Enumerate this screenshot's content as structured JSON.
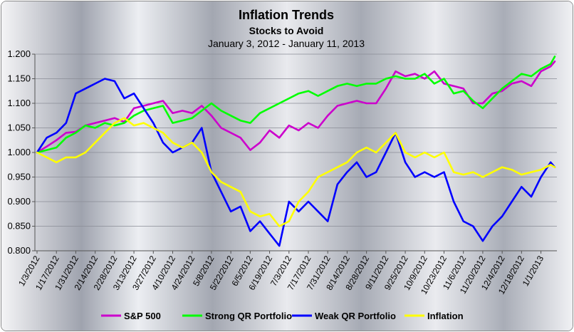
{
  "chart_data": {
    "type": "line",
    "title": "Inflation Trends",
    "subtitle": "Stocks to Avoid",
    "date_range": "January 3, 2012 - January 11, 2013",
    "ylim": [
      0.8,
      1.2
    ],
    "yticks": [
      "0.800",
      "0.850",
      "0.900",
      "0.950",
      "1.000",
      "1.050",
      "1.100",
      "1.150",
      "1.200"
    ],
    "xticks": [
      "1/3/2012",
      "1/17/2012",
      "1/31/2012",
      "2/14/2012",
      "2/28/2012",
      "3/13/2012",
      "3/27/2012",
      "4/10/2012",
      "4/24/2012",
      "5/8/2012",
      "5/22/2012",
      "6/5/2012",
      "6/19/2012",
      "7/3/2012",
      "7/17/2012",
      "7/31/2012",
      "8/14/2012",
      "8/28/2012",
      "9/11/2012",
      "9/25/2012",
      "10/9/2012",
      "10/23/2012",
      "11/6/2012",
      "11/20/2012",
      "12/4/2012",
      "12/18/2012",
      "1/1/2013"
    ],
    "legend_position": "bottom",
    "grid": "horizontal",
    "series": [
      {
        "name": "S&P 500",
        "color": "#cc00cc",
        "points": [
          [
            "1/3/2012",
            1.0
          ],
          [
            "1/10/2012",
            1.012
          ],
          [
            "1/17/2012",
            1.025
          ],
          [
            "1/24/2012",
            1.04
          ],
          [
            "1/31/2012",
            1.042
          ],
          [
            "2/7/2012",
            1.055
          ],
          [
            "2/14/2012",
            1.06
          ],
          [
            "2/21/2012",
            1.065
          ],
          [
            "2/28/2012",
            1.07
          ],
          [
            "3/6/2012",
            1.062
          ],
          [
            "3/13/2012",
            1.09
          ],
          [
            "3/20/2012",
            1.095
          ],
          [
            "3/27/2012",
            1.1
          ],
          [
            "4/3/2012",
            1.105
          ],
          [
            "4/10/2012",
            1.08
          ],
          [
            "4/17/2012",
            1.085
          ],
          [
            "4/24/2012",
            1.08
          ],
          [
            "5/1/2012",
            1.095
          ],
          [
            "5/8/2012",
            1.075
          ],
          [
            "5/15/2012",
            1.05
          ],
          [
            "5/22/2012",
            1.04
          ],
          [
            "5/29/2012",
            1.03
          ],
          [
            "6/5/2012",
            1.005
          ],
          [
            "6/12/2012",
            1.02
          ],
          [
            "6/19/2012",
            1.045
          ],
          [
            "6/26/2012",
            1.03
          ],
          [
            "7/3/2012",
            1.055
          ],
          [
            "7/10/2012",
            1.045
          ],
          [
            "7/17/2012",
            1.06
          ],
          [
            "7/24/2012",
            1.05
          ],
          [
            "7/31/2012",
            1.075
          ],
          [
            "8/7/2012",
            1.095
          ],
          [
            "8/14/2012",
            1.1
          ],
          [
            "8/21/2012",
            1.105
          ],
          [
            "8/28/2012",
            1.1
          ],
          [
            "9/4/2012",
            1.1
          ],
          [
            "9/11/2012",
            1.13
          ],
          [
            "9/18/2012",
            1.165
          ],
          [
            "9/25/2012",
            1.155
          ],
          [
            "10/2/2012",
            1.16
          ],
          [
            "10/9/2012",
            1.15
          ],
          [
            "10/16/2012",
            1.165
          ],
          [
            "10/23/2012",
            1.14
          ],
          [
            "10/30/2012",
            1.135
          ],
          [
            "11/6/2012",
            1.13
          ],
          [
            "11/13/2012",
            1.1
          ],
          [
            "11/20/2012",
            1.1
          ],
          [
            "11/27/2012",
            1.12
          ],
          [
            "12/4/2012",
            1.125
          ],
          [
            "12/11/2012",
            1.14
          ],
          [
            "12/18/2012",
            1.145
          ],
          [
            "12/25/2012",
            1.135
          ],
          [
            "1/1/2013",
            1.165
          ],
          [
            "1/8/2013",
            1.175
          ],
          [
            "1/11/2013",
            1.185
          ]
        ]
      },
      {
        "name": "Strong QR Portfolio",
        "color": "#00ff00",
        "points": [
          [
            "1/3/2012",
            1.0
          ],
          [
            "1/10/2012",
            1.005
          ],
          [
            "1/17/2012",
            1.01
          ],
          [
            "1/24/2012",
            1.03
          ],
          [
            "1/31/2012",
            1.04
          ],
          [
            "2/7/2012",
            1.055
          ],
          [
            "2/14/2012",
            1.05
          ],
          [
            "2/21/2012",
            1.06
          ],
          [
            "2/28/2012",
            1.055
          ],
          [
            "3/6/2012",
            1.06
          ],
          [
            "3/13/2012",
            1.075
          ],
          [
            "3/20/2012",
            1.085
          ],
          [
            "3/27/2012",
            1.09
          ],
          [
            "4/3/2012",
            1.095
          ],
          [
            "4/10/2012",
            1.06
          ],
          [
            "4/17/2012",
            1.065
          ],
          [
            "4/24/2012",
            1.07
          ],
          [
            "5/1/2012",
            1.085
          ],
          [
            "5/8/2012",
            1.1
          ],
          [
            "5/15/2012",
            1.085
          ],
          [
            "5/22/2012",
            1.075
          ],
          [
            "5/29/2012",
            1.065
          ],
          [
            "6/5/2012",
            1.06
          ],
          [
            "6/12/2012",
            1.08
          ],
          [
            "6/19/2012",
            1.09
          ],
          [
            "6/26/2012",
            1.1
          ],
          [
            "7/3/2012",
            1.11
          ],
          [
            "7/10/2012",
            1.12
          ],
          [
            "7/17/2012",
            1.125
          ],
          [
            "7/24/2012",
            1.115
          ],
          [
            "7/31/2012",
            1.125
          ],
          [
            "8/7/2012",
            1.135
          ],
          [
            "8/14/2012",
            1.14
          ],
          [
            "8/21/2012",
            1.135
          ],
          [
            "8/28/2012",
            1.14
          ],
          [
            "9/4/2012",
            1.14
          ],
          [
            "9/11/2012",
            1.15
          ],
          [
            "9/18/2012",
            1.155
          ],
          [
            "9/25/2012",
            1.15
          ],
          [
            "10/2/2012",
            1.15
          ],
          [
            "10/9/2012",
            1.16
          ],
          [
            "10/16/2012",
            1.14
          ],
          [
            "10/23/2012",
            1.15
          ],
          [
            "10/30/2012",
            1.12
          ],
          [
            "11/6/2012",
            1.125
          ],
          [
            "11/13/2012",
            1.105
          ],
          [
            "11/20/2012",
            1.09
          ],
          [
            "11/27/2012",
            1.11
          ],
          [
            "12/4/2012",
            1.13
          ],
          [
            "12/11/2012",
            1.145
          ],
          [
            "12/18/2012",
            1.16
          ],
          [
            "12/25/2012",
            1.155
          ],
          [
            "1/1/2013",
            1.17
          ],
          [
            "1/8/2013",
            1.18
          ],
          [
            "1/11/2013",
            1.195
          ]
        ]
      },
      {
        "name": "Weak QR Portfolio",
        "color": "#0000ff",
        "points": [
          [
            "1/3/2012",
            1.0
          ],
          [
            "1/10/2012",
            1.03
          ],
          [
            "1/17/2012",
            1.04
          ],
          [
            "1/24/2012",
            1.06
          ],
          [
            "1/31/2012",
            1.12
          ],
          [
            "2/7/2012",
            1.13
          ],
          [
            "2/14/2012",
            1.14
          ],
          [
            "2/21/2012",
            1.15
          ],
          [
            "2/28/2012",
            1.145
          ],
          [
            "3/6/2012",
            1.11
          ],
          [
            "3/13/2012",
            1.12
          ],
          [
            "3/20/2012",
            1.09
          ],
          [
            "3/27/2012",
            1.06
          ],
          [
            "4/3/2012",
            1.02
          ],
          [
            "4/10/2012",
            1.0
          ],
          [
            "4/17/2012",
            1.01
          ],
          [
            "4/24/2012",
            1.02
          ],
          [
            "5/1/2012",
            1.05
          ],
          [
            "5/8/2012",
            0.96
          ],
          [
            "5/15/2012",
            0.92
          ],
          [
            "5/22/2012",
            0.88
          ],
          [
            "5/29/2012",
            0.89
          ],
          [
            "6/5/2012",
            0.84
          ],
          [
            "6/12/2012",
            0.86
          ],
          [
            "6/19/2012",
            0.835
          ],
          [
            "6/26/2012",
            0.81
          ],
          [
            "7/3/2012",
            0.9
          ],
          [
            "7/10/2012",
            0.88
          ],
          [
            "7/17/2012",
            0.9
          ],
          [
            "7/24/2012",
            0.88
          ],
          [
            "7/31/2012",
            0.86
          ],
          [
            "8/7/2012",
            0.935
          ],
          [
            "8/14/2012",
            0.96
          ],
          [
            "8/21/2012",
            0.98
          ],
          [
            "8/28/2012",
            0.95
          ],
          [
            "9/4/2012",
            0.96
          ],
          [
            "9/11/2012",
            1.0
          ],
          [
            "9/18/2012",
            1.04
          ],
          [
            "9/25/2012",
            0.98
          ],
          [
            "10/2/2012",
            0.95
          ],
          [
            "10/9/2012",
            0.96
          ],
          [
            "10/16/2012",
            0.95
          ],
          [
            "10/23/2012",
            0.96
          ],
          [
            "10/30/2012",
            0.9
          ],
          [
            "11/6/2012",
            0.86
          ],
          [
            "11/13/2012",
            0.85
          ],
          [
            "11/20/2012",
            0.82
          ],
          [
            "11/27/2012",
            0.85
          ],
          [
            "12/4/2012",
            0.87
          ],
          [
            "12/11/2012",
            0.9
          ],
          [
            "12/18/2012",
            0.93
          ],
          [
            "12/25/2012",
            0.91
          ],
          [
            "1/1/2013",
            0.95
          ],
          [
            "1/8/2013",
            0.98
          ],
          [
            "1/11/2013",
            0.97
          ]
        ]
      },
      {
        "name": "Inflation",
        "color": "#ffff00",
        "points": [
          [
            "1/3/2012",
            1.0
          ],
          [
            "1/10/2012",
            0.99
          ],
          [
            "1/17/2012",
            0.98
          ],
          [
            "1/24/2012",
            0.99
          ],
          [
            "1/31/2012",
            0.99
          ],
          [
            "2/7/2012",
            1.0
          ],
          [
            "2/14/2012",
            1.02
          ],
          [
            "2/21/2012",
            1.04
          ],
          [
            "2/28/2012",
            1.06
          ],
          [
            "3/6/2012",
            1.07
          ],
          [
            "3/13/2012",
            1.055
          ],
          [
            "3/20/2012",
            1.06
          ],
          [
            "3/27/2012",
            1.05
          ],
          [
            "4/3/2012",
            1.04
          ],
          [
            "4/10/2012",
            1.02
          ],
          [
            "4/17/2012",
            1.01
          ],
          [
            "4/24/2012",
            1.02
          ],
          [
            "5/1/2012",
            1.0
          ],
          [
            "5/8/2012",
            0.96
          ],
          [
            "5/15/2012",
            0.94
          ],
          [
            "5/22/2012",
            0.93
          ],
          [
            "5/29/2012",
            0.92
          ],
          [
            "6/5/2012",
            0.88
          ],
          [
            "6/12/2012",
            0.87
          ],
          [
            "6/19/2012",
            0.875
          ],
          [
            "6/26/2012",
            0.85
          ],
          [
            "7/3/2012",
            0.86
          ],
          [
            "7/10/2012",
            0.9
          ],
          [
            "7/17/2012",
            0.92
          ],
          [
            "7/24/2012",
            0.95
          ],
          [
            "7/31/2012",
            0.96
          ],
          [
            "8/7/2012",
            0.97
          ],
          [
            "8/14/2012",
            0.98
          ],
          [
            "8/21/2012",
            1.0
          ],
          [
            "8/28/2012",
            1.01
          ],
          [
            "9/4/2012",
            1.0
          ],
          [
            "9/11/2012",
            1.02
          ],
          [
            "9/18/2012",
            1.04
          ],
          [
            "9/25/2012",
            1.0
          ],
          [
            "10/2/2012",
            0.99
          ],
          [
            "10/9/2012",
            1.0
          ],
          [
            "10/16/2012",
            0.99
          ],
          [
            "10/23/2012",
            1.0
          ],
          [
            "10/30/2012",
            0.96
          ],
          [
            "11/6/2012",
            0.955
          ],
          [
            "11/13/2012",
            0.96
          ],
          [
            "11/20/2012",
            0.95
          ],
          [
            "11/27/2012",
            0.96
          ],
          [
            "12/4/2012",
            0.97
          ],
          [
            "12/11/2012",
            0.965
          ],
          [
            "12/18/2012",
            0.955
          ],
          [
            "12/25/2012",
            0.96
          ],
          [
            "1/1/2013",
            0.965
          ],
          [
            "1/8/2013",
            0.975
          ],
          [
            "1/11/2013",
            0.97
          ]
        ]
      }
    ]
  }
}
